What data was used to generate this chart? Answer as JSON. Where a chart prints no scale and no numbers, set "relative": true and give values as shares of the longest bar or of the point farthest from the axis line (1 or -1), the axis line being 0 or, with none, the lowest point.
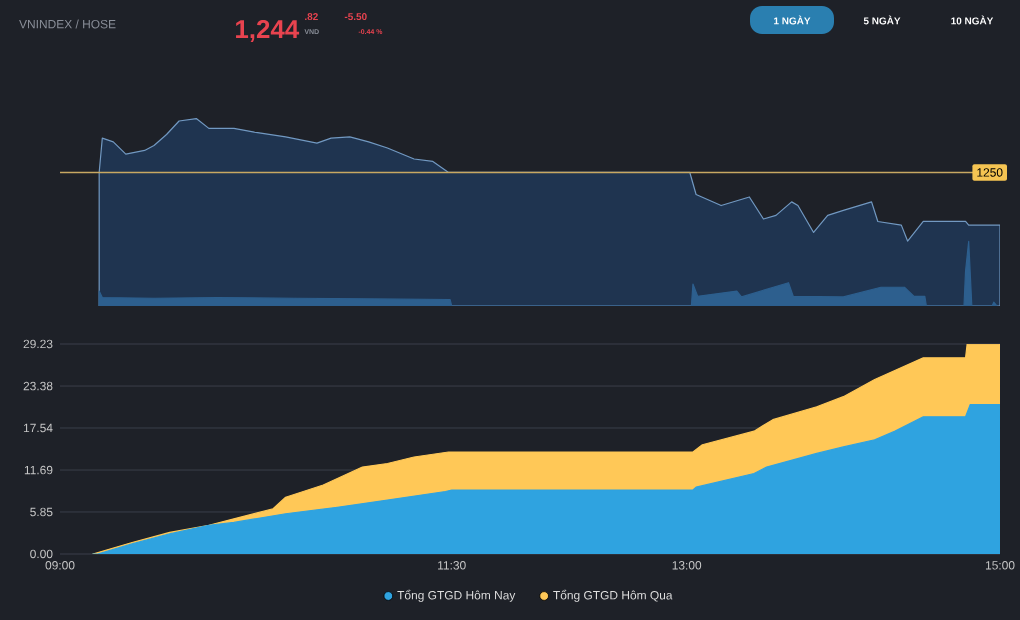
{
  "chart_data": [
    {
      "type": "area",
      "title": "VNINDEX / HOSE",
      "annotations": [
        "1,244",
        ".82",
        "VND",
        "-5.50",
        "-0.44 %",
        "1 NGÀY",
        "5 NGÀY",
        "10 NGÀY",
        "1250"
      ],
      "relative": true,
      "xlim": [
        9,
        15
      ],
      "tick_labels": false,
      "series": [
        {
          "color": "#1f3450",
          "x": [
            9.25,
            9.27,
            9.34,
            9.42,
            9.54,
            9.6,
            9.68,
            9.76,
            9.87,
            9.95,
            10.11,
            10.24,
            10.44,
            10.64,
            10.73,
            10.85,
            10.97,
            11.09,
            11.26,
            11.38,
            11.48,
            13.02,
            13.06,
            13.22,
            13.4,
            13.49,
            13.57,
            13.67,
            13.71,
            13.81,
            13.9,
            14.0,
            14.18,
            14.22,
            14.37,
            14.41,
            14.51,
            14.78,
            14.8,
            15.0
          ],
          "values": [
            0.56,
            0.84,
            0.81,
            0.71,
            0.74,
            0.78,
            0.87,
            0.98,
            1.0,
            0.92,
            0.92,
            0.89,
            0.85,
            0.8,
            0.84,
            0.85,
            0.81,
            0.76,
            0.67,
            0.65,
            0.56,
            0.56,
            0.38,
            0.29,
            0.36,
            0.18,
            0.21,
            0.32,
            0.29,
            0.07,
            0.21,
            0.25,
            0.32,
            0.16,
            0.13,
            0,
            0.16,
            0.16,
            0.13,
            0.13
          ]
        }
      ],
      "ref_lines": [
        {
          "axis": "y",
          "value": 0.56,
          "color": "#c8a862"
        }
      ]
    },
    {
      "type": "area",
      "relative": true,
      "xlim": [
        9,
        15
      ],
      "tick_labels": false,
      "series": [
        {
          "color": "#2d5f8e",
          "x": [
            9.25,
            9.27,
            9.6,
            10.0,
            10.5,
            11.0,
            11.49,
            11.5,
            13.03,
            13.04,
            13.07,
            13.32,
            13.35,
            13.65,
            13.68,
            14.0,
            14.24,
            14.39,
            14.45,
            14.52,
            14.53,
            14.77,
            14.78,
            14.8,
            14.82,
            14.95,
            14.96,
            14.98
          ],
          "values": [
            0.23,
            0.13,
            0.12,
            0.13,
            0.12,
            0.11,
            0.1,
            0,
            0,
            0.34,
            0.15,
            0.23,
            0.14,
            0.36,
            0.15,
            0.14,
            0.29,
            0.29,
            0.15,
            0.15,
            0,
            0,
            0.54,
            1.0,
            0,
            0,
            0.06,
            0
          ]
        }
      ]
    },
    {
      "type": "area",
      "xlim": [
        9,
        15
      ],
      "ylim": [
        0,
        29.23
      ],
      "xticks": [
        {
          "value": 9,
          "label": "09:00"
        },
        {
          "value": 11.5,
          "label": "11:30"
        },
        {
          "value": 13,
          "label": "13:00"
        },
        {
          "value": 15,
          "label": "15:00"
        }
      ],
      "yticks": [
        {
          "value": 0,
          "label": "0.00"
        },
        5.85,
        11.69,
        17.54,
        23.38,
        29.23
      ],
      "grid": "y",
      "legend": "bottom",
      "series": [
        {
          "name": "Tổng GTGD Hôm Nay",
          "color": "#2fa3e0",
          "x": [
            9.21,
            9.24,
            9.46,
            9.7,
            9.95,
            10.11,
            10.44,
            10.77,
            11.09,
            11.46,
            11.5,
            13.04,
            13.06,
            13.43,
            13.51,
            13.83,
            14.0,
            14.2,
            14.33,
            14.51,
            14.78,
            14.81,
            15.0
          ],
          "values": [
            0,
            0,
            1.4,
            2.8,
            4.0,
            4.4,
            5.6,
            6.5,
            7.5,
            8.7,
            8.9,
            8.9,
            9.3,
            11.2,
            12.1,
            14.0,
            14.9,
            15.9,
            17.1,
            19.1,
            19.1,
            20.8,
            20.8
          ]
        },
        {
          "name": "Tổng GTGD Hôm Qua",
          "color": "#ffc857",
          "x": [
            9.21,
            9.46,
            9.7,
            9.95,
            10.11,
            10.36,
            10.44,
            10.68,
            10.93,
            11.09,
            11.26,
            11.48,
            13.04,
            13.1,
            13.43,
            13.55,
            13.83,
            14.0,
            14.2,
            14.51,
            14.78,
            14.79,
            15.0
          ],
          "values": [
            0,
            1.6,
            3.0,
            4.0,
            4.9,
            6.3,
            7.9,
            9.6,
            12.1,
            12.6,
            13.5,
            14.2,
            14.2,
            15.2,
            17.1,
            18.7,
            20.5,
            21.9,
            24.3,
            27.3,
            27.3,
            29.2,
            29.2
          ]
        }
      ]
    }
  ]
}
